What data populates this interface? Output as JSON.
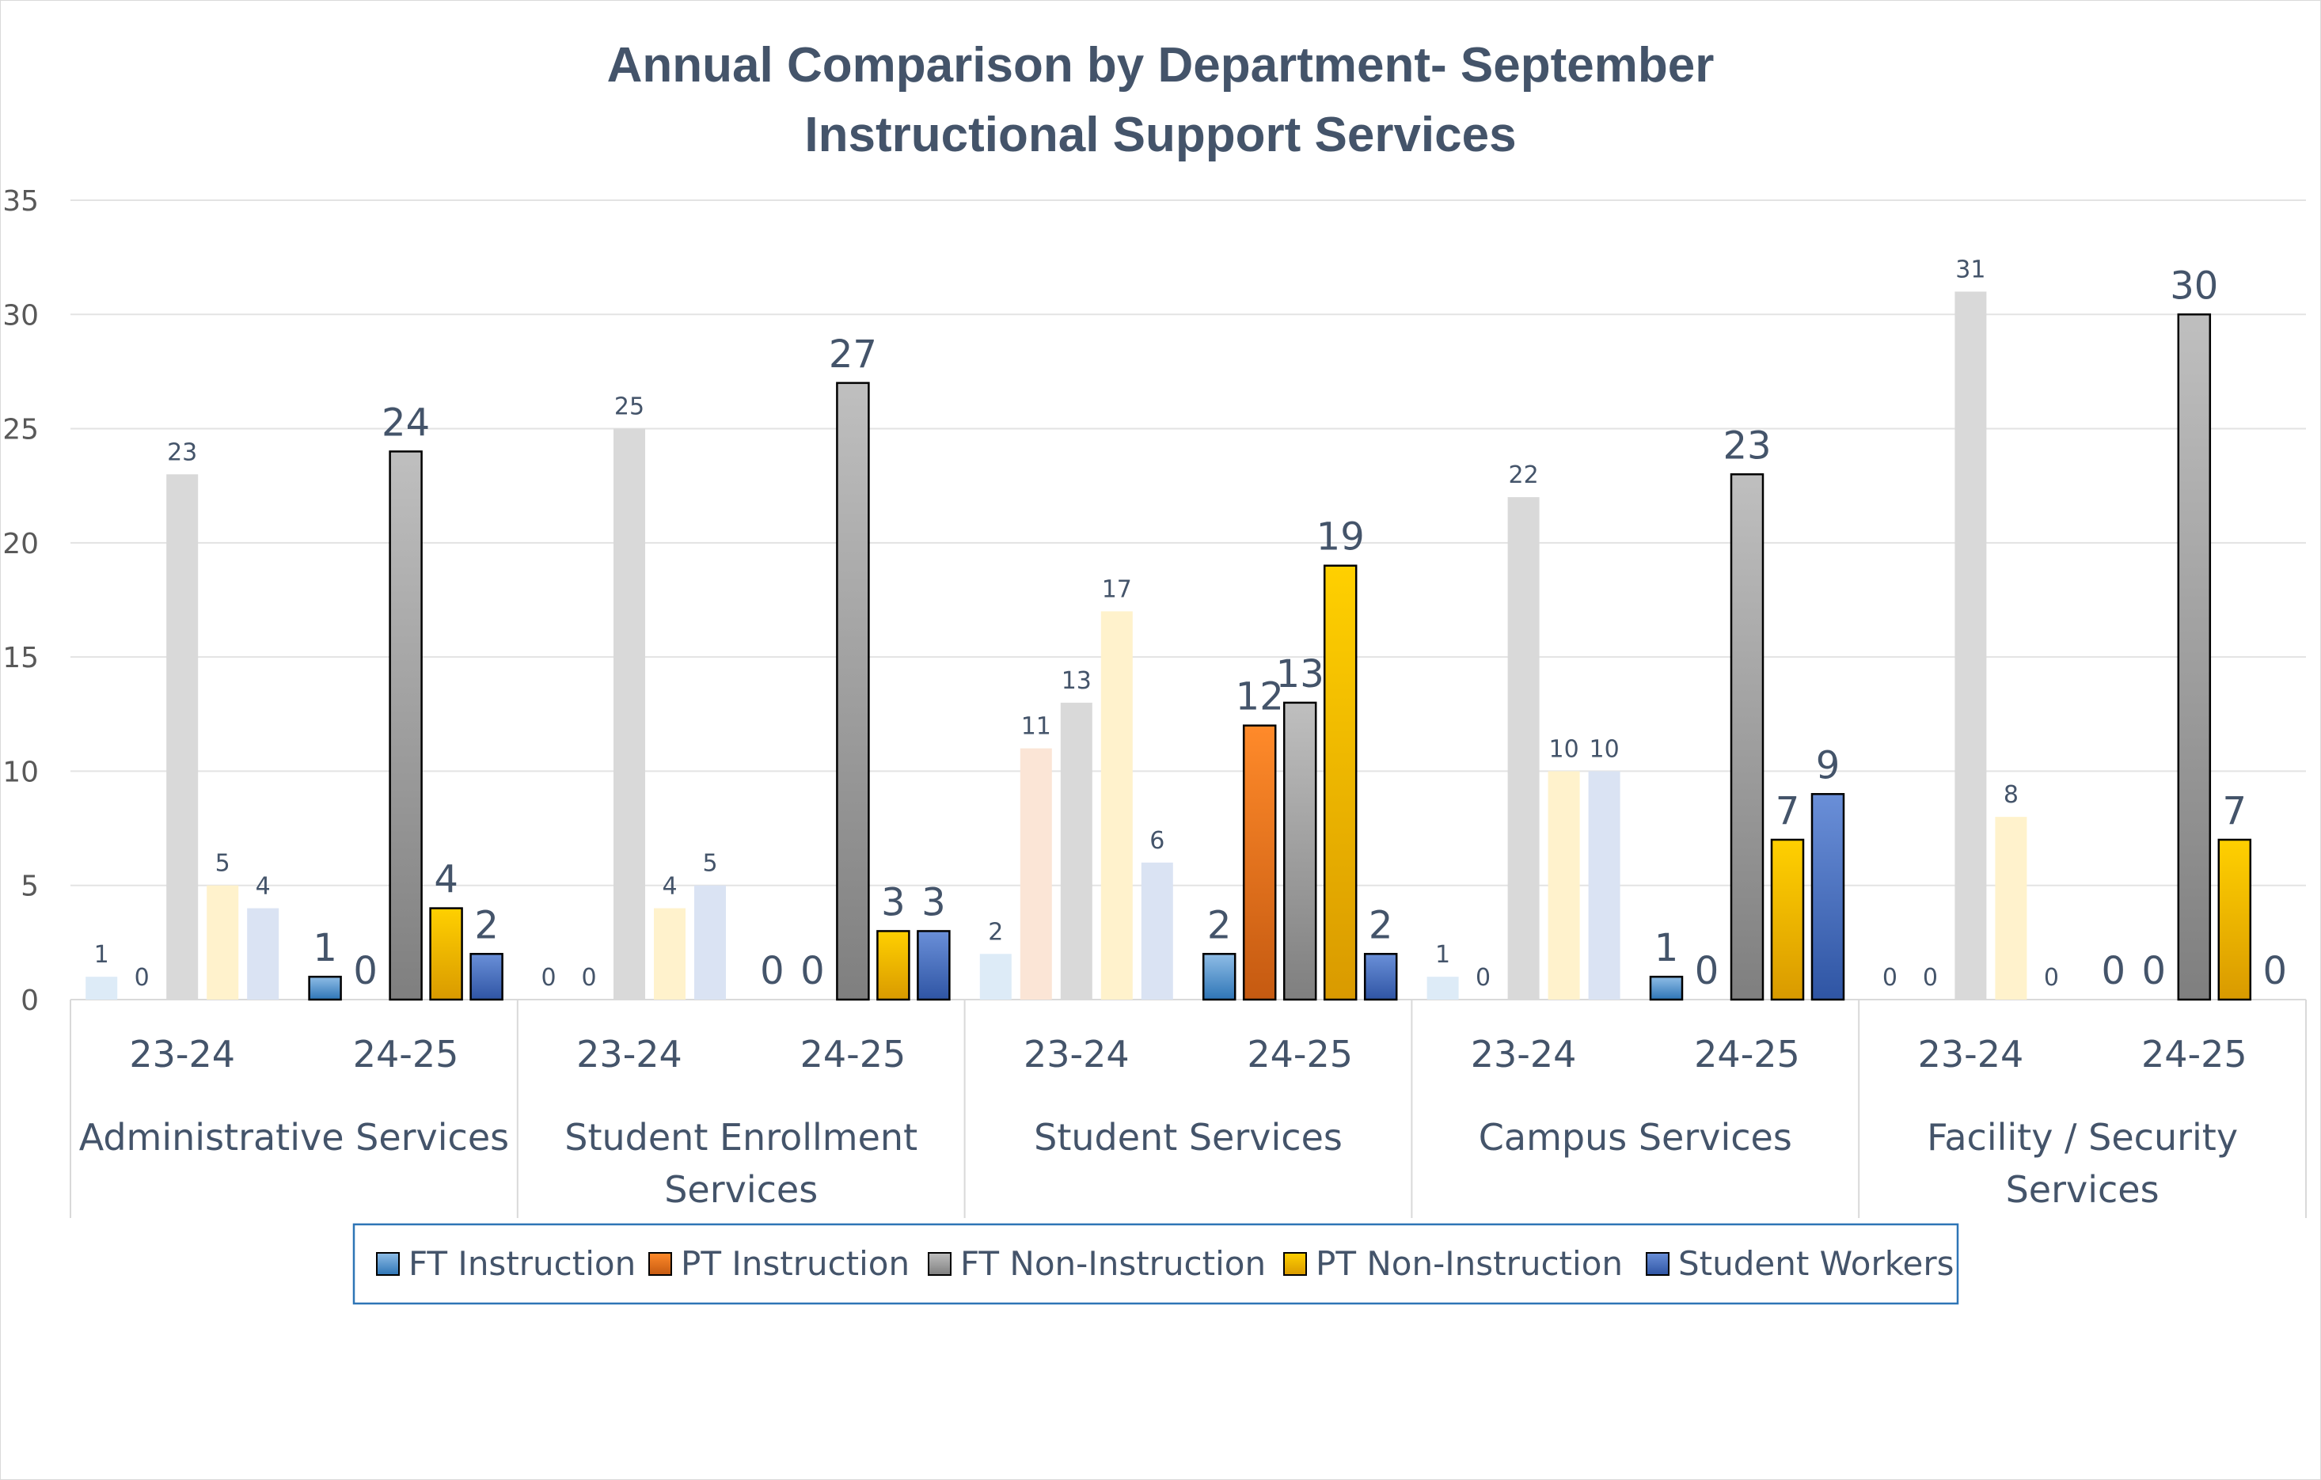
{
  "chart_data": {
    "type": "bar",
    "title": [
      "Annual Comparison by Department- September",
      "Instructional Support Services"
    ],
    "ylim": [
      0,
      35
    ],
    "yticks": [
      0,
      5,
      10,
      15,
      20,
      25,
      30,
      35
    ],
    "grid": true,
    "legend_position": "bottom",
    "groups": [
      {
        "name": [
          "Administrative Services"
        ],
        "years": [
          "23-24",
          "24-25"
        ]
      },
      {
        "name": [
          "Student Enrollment",
          "Services"
        ],
        "years": [
          "23-24",
          "24-25"
        ]
      },
      {
        "name": [
          "Student Services"
        ],
        "years": [
          "23-24",
          "24-25"
        ]
      },
      {
        "name": [
          "Campus Services"
        ],
        "years": [
          "23-24",
          "24-25"
        ]
      },
      {
        "name": [
          "Facility / Security",
          "Services"
        ],
        "years": [
          "23-24",
          "24-25"
        ]
      }
    ],
    "series": [
      {
        "name": "FT Instruction",
        "color": "#5b9bd5",
        "color_faded": "#ddebf7",
        "values": [
          [
            1,
            1
          ],
          [
            0,
            0
          ],
          [
            2,
            2
          ],
          [
            1,
            1
          ],
          [
            0,
            0
          ]
        ]
      },
      {
        "name": "PT Instruction",
        "color": "#ed7d31",
        "color_faded": "#fbe5d6",
        "values": [
          [
            0,
            0
          ],
          [
            0,
            0
          ],
          [
            11,
            12
          ],
          [
            0,
            0
          ],
          [
            0,
            0
          ]
        ]
      },
      {
        "name": "FT Non-Instruction",
        "color": "#a5a5a5",
        "color_faded": "#d9d9d9",
        "values": [
          [
            23,
            24
          ],
          [
            25,
            27
          ],
          [
            13,
            13
          ],
          [
            22,
            23
          ],
          [
            31,
            30
          ]
        ]
      },
      {
        "name": "PT Non-Instruction",
        "color": "#ffc000",
        "color_faded": "#fff2cc",
        "values": [
          [
            5,
            4
          ],
          [
            4,
            3
          ],
          [
            17,
            19
          ],
          [
            10,
            7
          ],
          [
            8,
            7
          ]
        ]
      },
      {
        "name": "Student Workers",
        "color": "#4472c4",
        "color_faded": "#dae3f3",
        "values": [
          [
            4,
            2
          ],
          [
            5,
            3
          ],
          [
            6,
            2
          ],
          [
            10,
            9
          ],
          [
            0,
            0
          ]
        ]
      }
    ],
    "label_visibility": [
      [
        [
          true,
          true
        ],
        [
          true,
          true
        ],
        [
          true,
          true
        ],
        [
          true,
          true
        ],
        [
          true,
          true
        ]
      ],
      [
        [
          true,
          true
        ],
        [
          true,
          true
        ],
        [
          true,
          true
        ],
        [
          true,
          true
        ],
        [
          true,
          true
        ]
      ],
      [
        [
          true,
          true
        ],
        [
          true,
          true
        ],
        [
          true,
          true
        ],
        [
          true,
          true
        ],
        [
          true,
          true
        ]
      ],
      [
        [
          true,
          true
        ],
        [
          true,
          true
        ],
        [
          true,
          true
        ],
        [
          true,
          true
        ],
        [
          true,
          true
        ]
      ],
      [
        [
          true,
          true
        ],
        [
          true,
          true
        ],
        [
          true,
          true
        ],
        [
          true,
          true
        ],
        [
          true,
          true
        ]
      ]
    ]
  }
}
